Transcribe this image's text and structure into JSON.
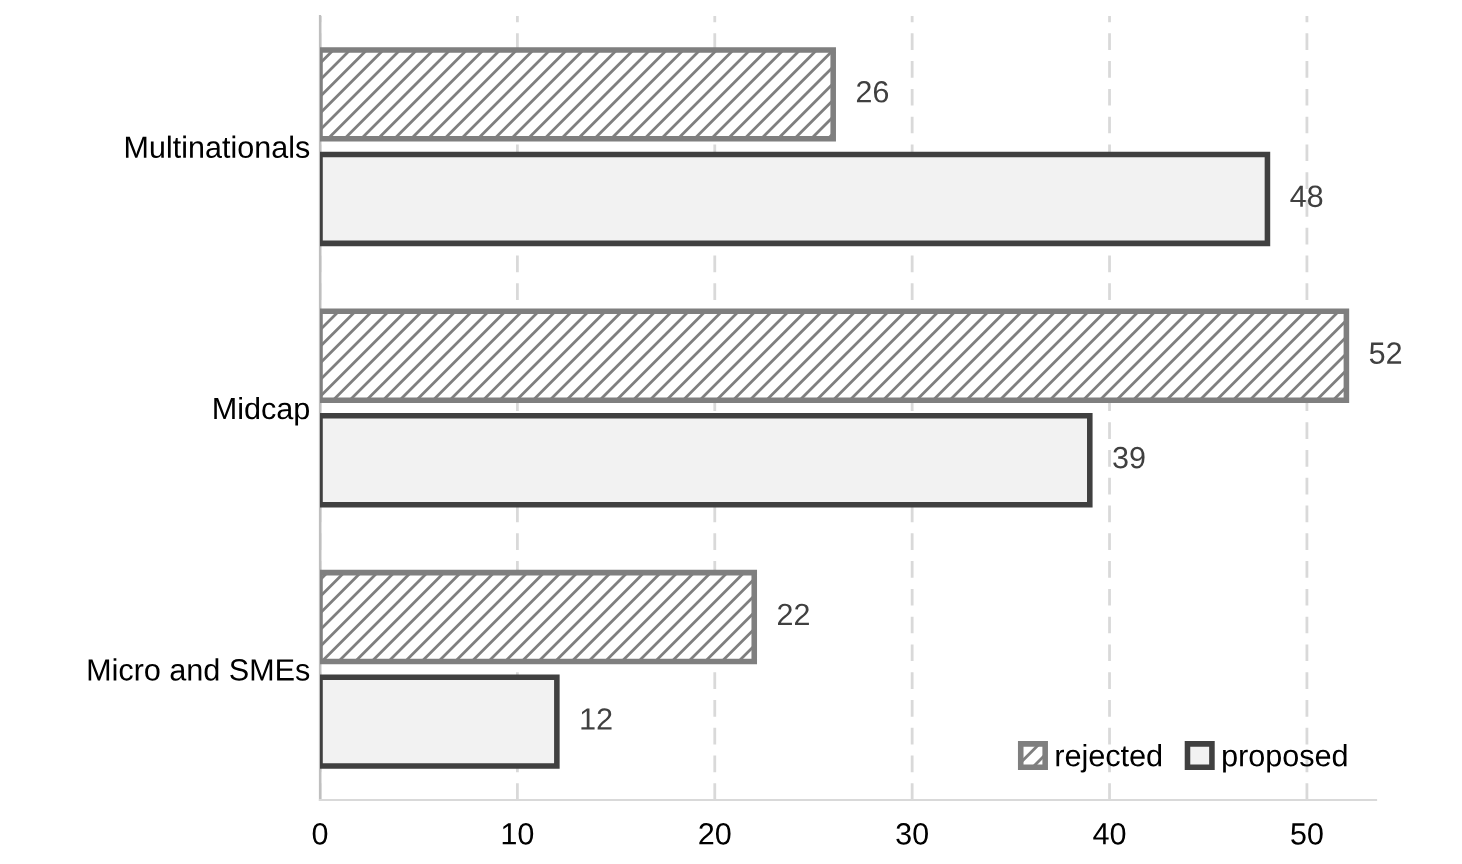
{
  "chart_data": {
    "type": "bar",
    "orientation": "horizontal",
    "categories": [
      "Multinationals",
      "Midcap",
      "Micro and SMEs"
    ],
    "series": [
      {
        "name": "rejected",
        "color": "#7f7f7f",
        "values": [
          26,
          52,
          22
        ]
      },
      {
        "name": "proposed",
        "color": "#404040",
        "values": [
          48,
          39,
          12
        ]
      }
    ],
    "xlim": [
      0,
      53.5
    ],
    "xticks": [
      0,
      10,
      20,
      30,
      40,
      50
    ],
    "grid": "x",
    "legend": "bottom right",
    "data_labels": true
  }
}
